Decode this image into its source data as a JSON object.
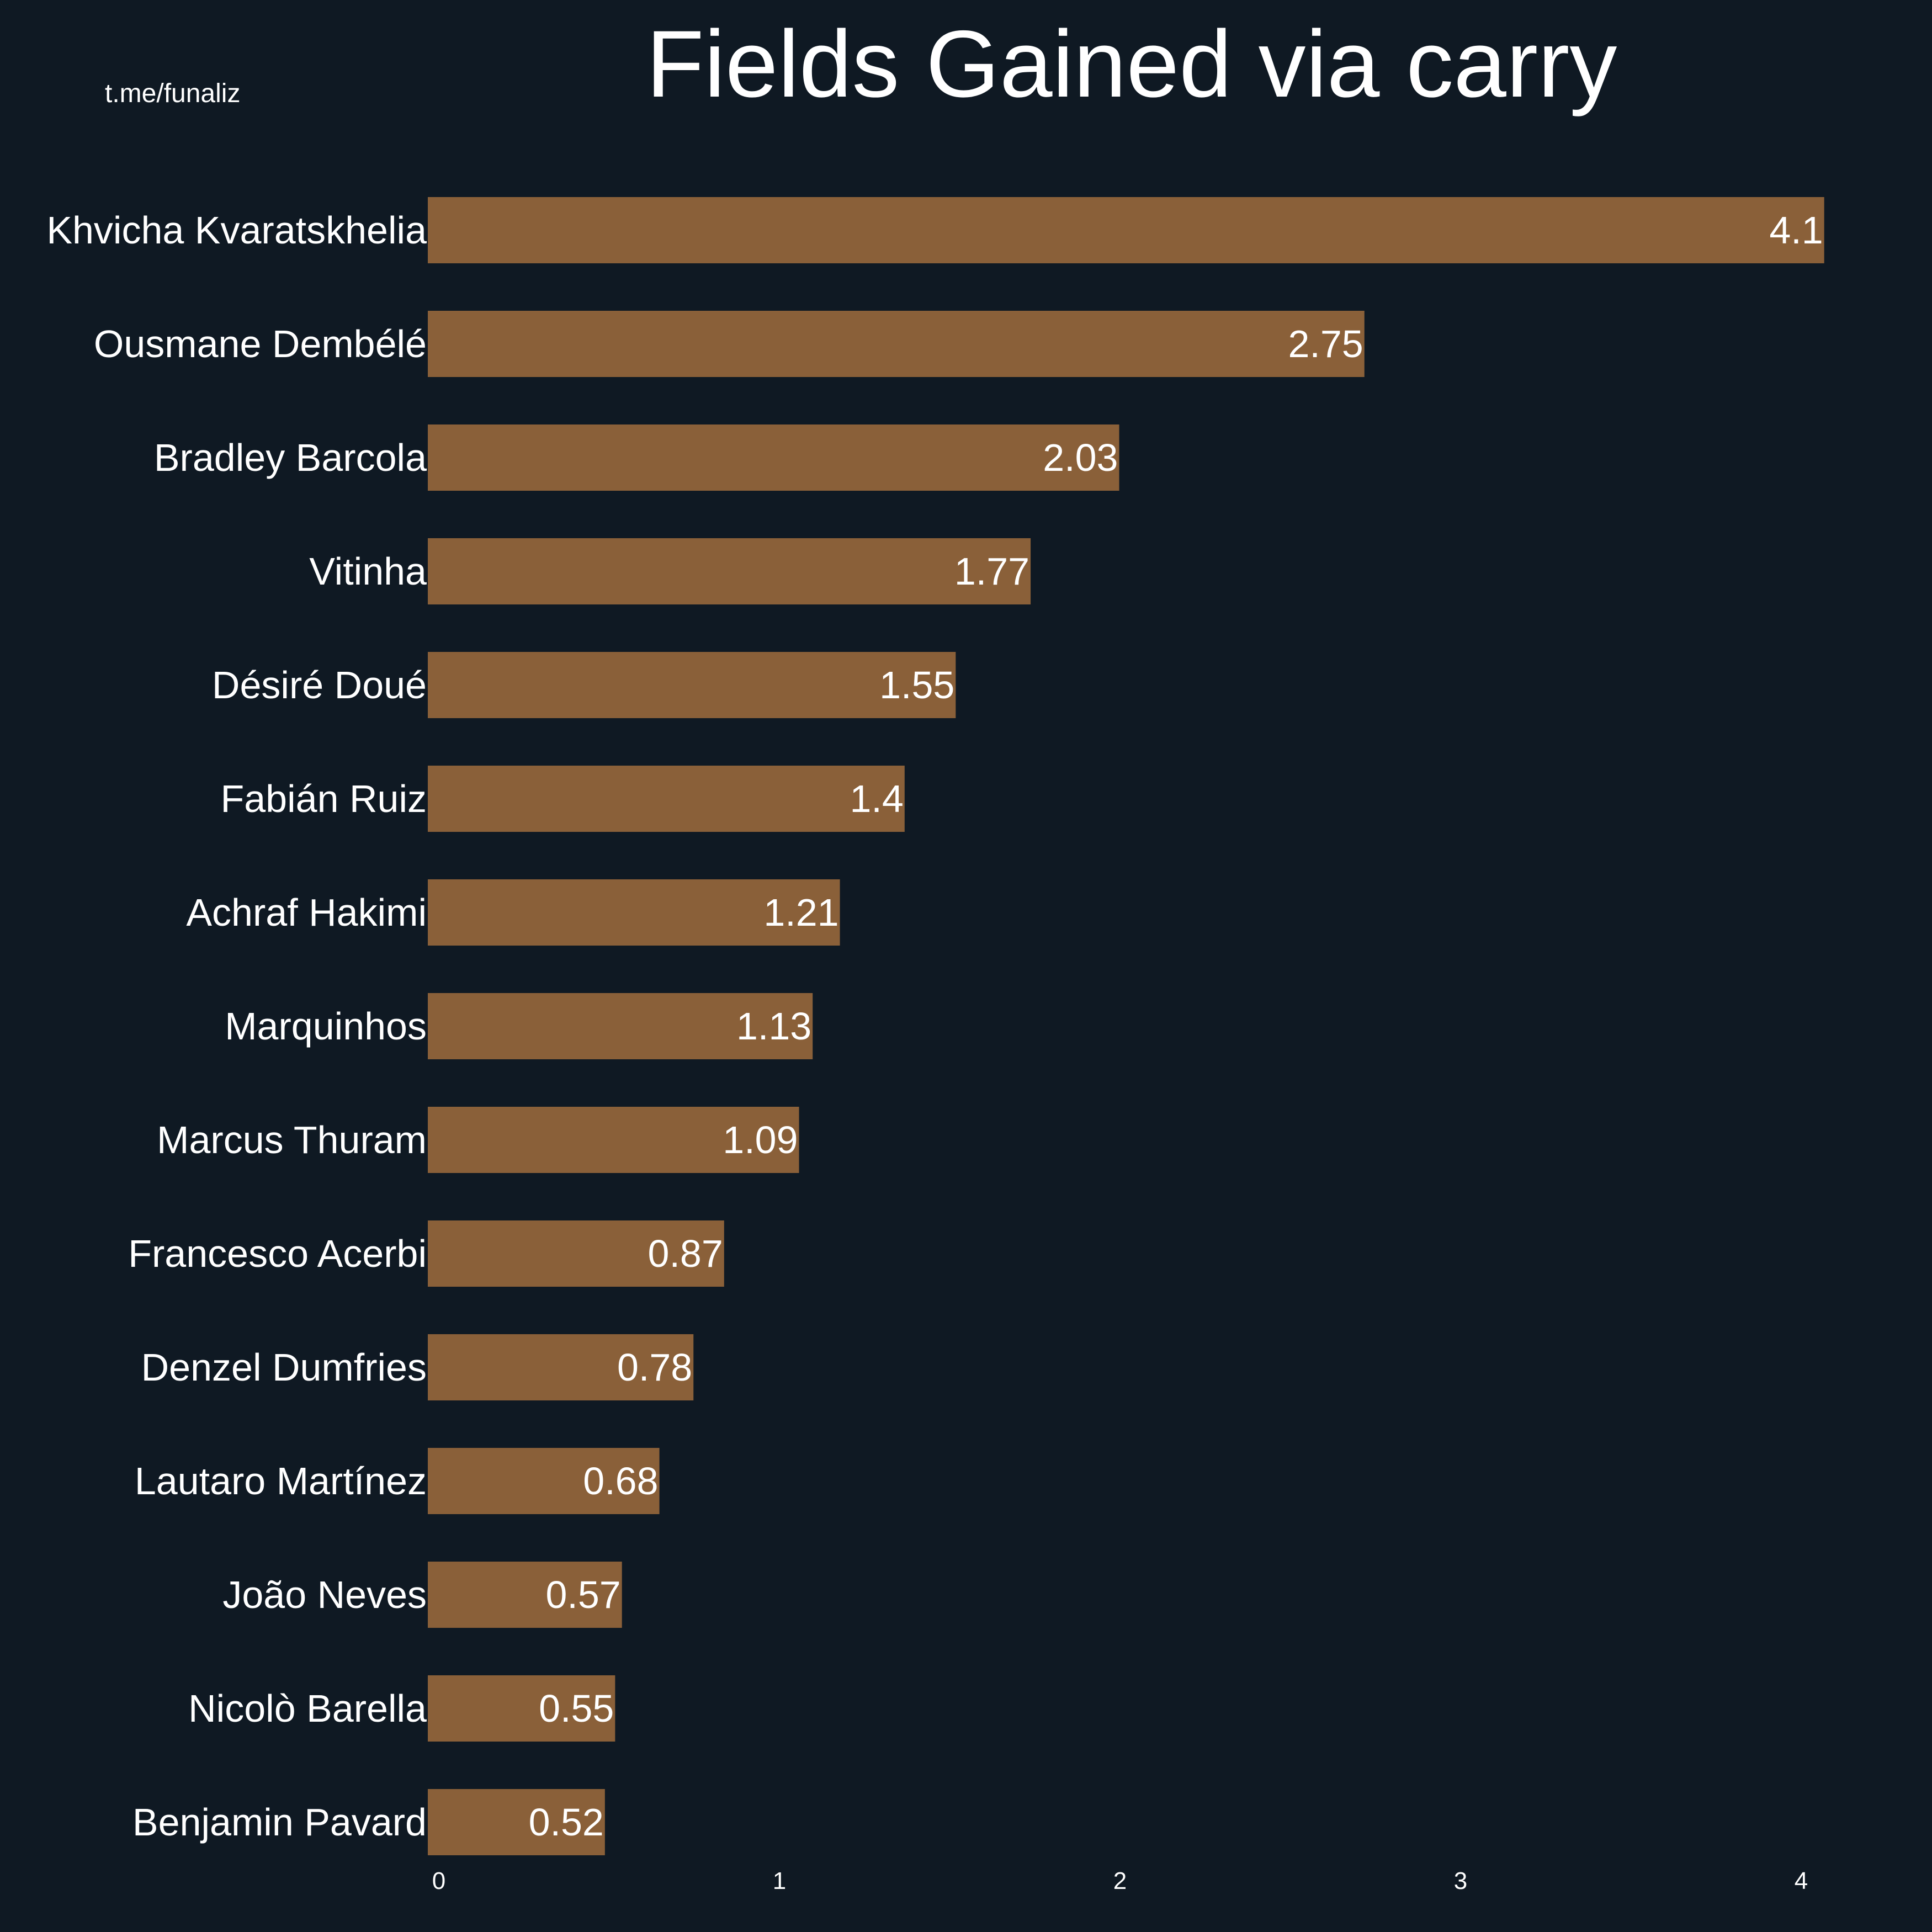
{
  "watermark": "t.me/funaliz",
  "colors": {
    "background": "#0f1923",
    "bar": "#8a6039",
    "text": "#ffffff"
  },
  "chart_data": {
    "type": "bar",
    "orientation": "horizontal",
    "title": "Fields Gained via carry",
    "xlabel": "",
    "ylabel": "",
    "xlim": [
      0,
      4.2
    ],
    "xticks": [
      0,
      1,
      2,
      3,
      4
    ],
    "grid": false,
    "categories": [
      "Khvicha Kvaratskhelia",
      "Ousmane Dembélé",
      "Bradley Barcola",
      "Vitinha",
      "Désiré Doué",
      "Fabián Ruiz",
      "Achraf Hakimi",
      "Marquinhos",
      "Marcus Thuram",
      "Francesco Acerbi",
      "Denzel Dumfries",
      "Lautaro Martínez",
      "João Neves",
      "Nicolò Barella",
      "Benjamin Pavard"
    ],
    "values": [
      4.1,
      2.75,
      2.03,
      1.77,
      1.55,
      1.4,
      1.21,
      1.13,
      1.09,
      0.87,
      0.78,
      0.68,
      0.57,
      0.55,
      0.52
    ],
    "value_labels": [
      "4.1",
      "2.75",
      "2.03",
      "1.77",
      "1.55",
      "1.4",
      "1.21",
      "1.13",
      "1.09",
      "0.87",
      "0.78",
      "0.68",
      "0.57",
      "0.55",
      "0.52"
    ]
  }
}
